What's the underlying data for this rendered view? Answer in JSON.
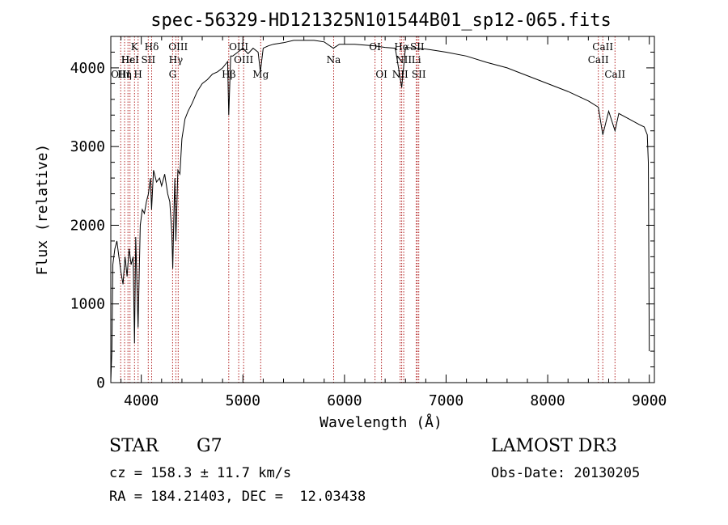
{
  "chart_data": {
    "type": "line",
    "title": "spec-56329-HD121325N101544B01_sp12-065.fits",
    "xlabel": "Wavelength (Å)",
    "ylabel": "Flux (relative)",
    "xlim": [
      3700,
      9050
    ],
    "ylim": [
      0,
      4400
    ],
    "xticks": [
      4000,
      5000,
      6000,
      7000,
      8000,
      9000
    ],
    "yticks": [
      0,
      1000,
      2000,
      3000,
      4000
    ],
    "xticks_minor_step": 200,
    "yticks_minor_step": 200,
    "series": [
      {
        "name": "spectrum",
        "x": [
          3700,
          3710,
          3720,
          3740,
          3760,
          3780,
          3800,
          3820,
          3840,
          3860,
          3880,
          3900,
          3920,
          3933,
          3945,
          3968,
          3990,
          4010,
          4030,
          4050,
          4070,
          4090,
          4101,
          4120,
          4150,
          4180,
          4200,
          4230,
          4260,
          4280,
          4300,
          4310,
          4320,
          4330,
          4340,
          4360,
          4380,
          4400,
          4430,
          4460,
          4500,
          4550,
          4600,
          4650,
          4700,
          4750,
          4800,
          4850,
          4861,
          4880,
          4900,
          4950,
          5000,
          5050,
          5100,
          5150,
          5172,
          5200,
          5250,
          5300,
          5400,
          5500,
          5600,
          5700,
          5800,
          5890,
          5950,
          6000,
          6100,
          6200,
          6300,
          6400,
          6500,
          6563,
          6600,
          6700,
          6800,
          6900,
          7000,
          7200,
          7400,
          7600,
          7800,
          8000,
          8200,
          8400,
          8498,
          8542,
          8600,
          8662,
          8700,
          8800,
          8900,
          8950,
          8980,
          8990,
          9000
        ],
        "y": [
          30,
          400,
          1500,
          1700,
          1800,
          1600,
          1400,
          1250,
          1600,
          1350,
          1700,
          1500,
          1600,
          500,
          1850,
          700,
          2000,
          2200,
          2150,
          2300,
          2400,
          2600,
          2200,
          2700,
          2550,
          2600,
          2500,
          2650,
          2400,
          2300,
          1900,
          1450,
          2100,
          2600,
          1800,
          2700,
          2650,
          3100,
          3350,
          3450,
          3550,
          3700,
          3800,
          3850,
          3920,
          3950,
          4000,
          4080,
          3400,
          4150,
          4150,
          4200,
          4250,
          4180,
          4250,
          4200,
          3950,
          4250,
          4280,
          4300,
          4320,
          4350,
          4350,
          4350,
          4330,
          4250,
          4300,
          4300,
          4300,
          4290,
          4280,
          4260,
          4250,
          3750,
          4260,
          4250,
          4240,
          4220,
          4200,
          4150,
          4070,
          4000,
          3900,
          3800,
          3700,
          3580,
          3500,
          3150,
          3450,
          3200,
          3420,
          3350,
          3280,
          3250,
          3150,
          2800,
          400
        ]
      }
    ],
    "lines": [
      {
        "x": 3797,
        "label": "OIII",
        "row": 2
      },
      {
        "x": 3835,
        "label": "Hη",
        "row": 2
      },
      {
        "x": 3869,
        "label": "Hε",
        "row": 1
      },
      {
        "x": 3889,
        "label": "HeI",
        "row": 1
      },
      {
        "x": 3933,
        "label": "K",
        "row": 0
      },
      {
        "x": 3968,
        "label": "H",
        "row": 2
      },
      {
        "x": 4069,
        "label": "SII",
        "row": 1
      },
      {
        "x": 4102,
        "label": "Hδ",
        "row": 0
      },
      {
        "x": 4308,
        "label": "G",
        "row": 2
      },
      {
        "x": 4340,
        "label": "Hγ",
        "row": 1
      },
      {
        "x": 4363,
        "label": "OIII",
        "row": 0
      },
      {
        "x": 4861,
        "label": "Hβ",
        "row": 2
      },
      {
        "x": 4959,
        "label": "OIII",
        "row": 0
      },
      {
        "x": 5007,
        "label": "OIII",
        "row": 1
      },
      {
        "x": 5175,
        "label": "Mg",
        "row": 2
      },
      {
        "x": 5893,
        "label": "Na",
        "row": 1
      },
      {
        "x": 6300,
        "label": "OI",
        "row": 0
      },
      {
        "x": 6364,
        "label": "OI",
        "row": 2
      },
      {
        "x": 6548,
        "label": "NII",
        "row": 2
      },
      {
        "x": 6563,
        "label": "Hα",
        "row": 0
      },
      {
        "x": 6583,
        "label": "NII",
        "row": 1
      },
      {
        "x": 6707,
        "label": "Li",
        "row": 1
      },
      {
        "x": 6716,
        "label": "SII",
        "row": 0
      },
      {
        "x": 6731,
        "label": "SII",
        "row": 2
      },
      {
        "x": 8498,
        "label": "CaII",
        "row": 1
      },
      {
        "x": 8542,
        "label": "CaII",
        "row": 0
      },
      {
        "x": 8662,
        "label": "CaII",
        "row": 2
      }
    ]
  },
  "info": {
    "class": "STAR",
    "subclass": "G7",
    "survey": "LAMOST DR3",
    "cz": "cz = 158.3 ± 11.7 km/s",
    "obs_date": "Obs-Date: 20130205",
    "radec": "RA = 184.21403, DEC =  12.03438"
  }
}
